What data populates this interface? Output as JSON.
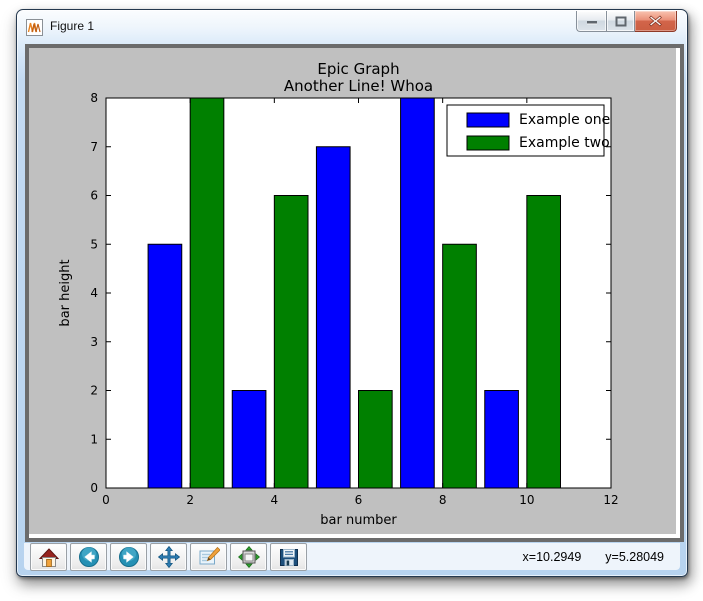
{
  "window": {
    "title": "Figure 1",
    "controls": [
      {
        "name": "minimize"
      },
      {
        "name": "maximize"
      },
      {
        "name": "close"
      }
    ]
  },
  "toolbar": {
    "buttons": [
      {
        "name": "home",
        "icon": "home-icon"
      },
      {
        "name": "back",
        "icon": "back-icon"
      },
      {
        "name": "forward",
        "icon": "forward-icon"
      },
      {
        "name": "pan",
        "icon": "pan-icon"
      },
      {
        "name": "zoom-rect",
        "icon": "zoom-rect-icon"
      },
      {
        "name": "subplots",
        "icon": "subplots-icon"
      },
      {
        "name": "save",
        "icon": "save-icon"
      }
    ],
    "coords": {
      "x": "x=10.2949",
      "y": "y=5.28049"
    }
  },
  "chart_data": {
    "type": "bar",
    "title": "Epic Graph",
    "subtitle": "Another Line! Whoa",
    "xlabel": "bar number",
    "ylabel": "bar height",
    "xlim": [
      0,
      12
    ],
    "ylim": [
      0,
      8
    ],
    "xticks": [
      0,
      2,
      4,
      6,
      8,
      10,
      12
    ],
    "yticks": [
      0,
      1,
      2,
      3,
      4,
      5,
      6,
      7,
      8
    ],
    "bar_width": 0.8,
    "bar_align": "edge",
    "grid": false,
    "series": [
      {
        "name": "Example one",
        "color": "#0000ff",
        "x": [
          1,
          3,
          5,
          7,
          9
        ],
        "values": [
          5,
          2,
          7,
          8,
          2
        ]
      },
      {
        "name": "Example two",
        "color": "#008000",
        "x": [
          2,
          4,
          6,
          8,
          10
        ],
        "values": [
          8,
          6,
          2,
          5,
          6
        ]
      }
    ],
    "legend": {
      "position": "upper right",
      "entries": [
        "Example one",
        "Example two"
      ]
    },
    "colors": {
      "figure_bg": "#c0c0c0",
      "axes_bg": "#ffffff",
      "bar_edge": "#000000",
      "text": "#000000"
    }
  }
}
